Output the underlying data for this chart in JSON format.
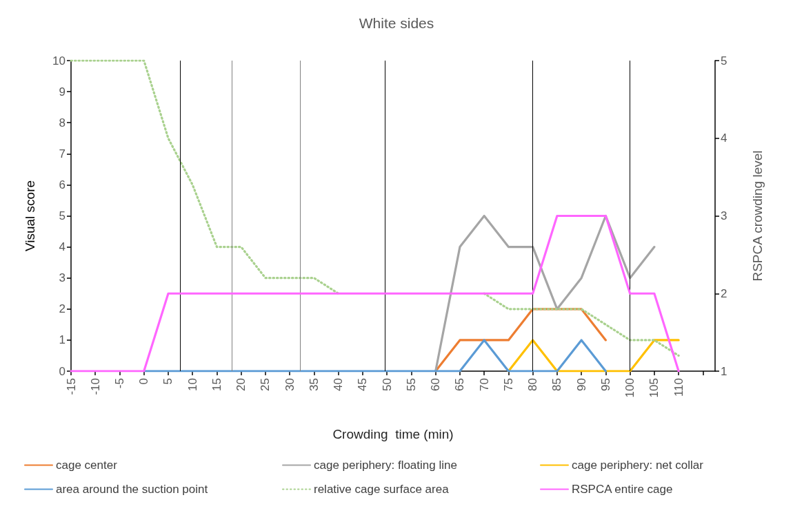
{
  "chart_data": {
    "type": "line",
    "title": "White sides",
    "xlabel": "Crowding  time (min)",
    "ylabel": "Visual score",
    "y2label": "RSPCA crowding level",
    "xlim": [
      -15,
      117.5
    ],
    "xticks": [
      -15,
      -10,
      -5,
      0,
      5,
      10,
      15,
      20,
      25,
      30,
      35,
      40,
      45,
      50,
      55,
      60,
      65,
      70,
      75,
      80,
      85,
      90,
      95,
      100,
      105,
      110,
      {
        "value": 115,
        "label": null
      }
    ],
    "ylim": [
      0,
      10
    ],
    "yticks": [
      0,
      1,
      2,
      3,
      4,
      5,
      6,
      7,
      8,
      9,
      10
    ],
    "y2lim": [
      1,
      5
    ],
    "y2ticks": [
      1,
      2,
      3,
      4,
      5
    ],
    "grid": false,
    "legend": "bottom",
    "marker": "none",
    "line_style": "solid",
    "ref_lines": [
      {
        "axis": "x",
        "value": 7.4,
        "color": "#000000"
      },
      {
        "axis": "x",
        "value": 18.1,
        "color": "#808080"
      },
      {
        "axis": "x",
        "value": 32.2,
        "color": "#808080"
      },
      {
        "axis": "x",
        "value": 49.6,
        "color": "#000000"
      },
      {
        "axis": "x",
        "value": 80,
        "color": "#000000"
      },
      {
        "axis": "x",
        "value": 100,
        "color": "#000000"
      }
    ],
    "series": [
      {
        "name": "cage center",
        "color": "#ed7d31",
        "x": [
          60,
          65,
          70,
          75,
          80,
          85,
          90,
          95
        ],
        "values": [
          0,
          1,
          1,
          1,
          2,
          2,
          2,
          1
        ]
      },
      {
        "name": "cage periphery: floating line",
        "color": "#a5a5a5",
        "x": [
          60,
          65,
          70,
          75,
          80,
          85,
          90,
          95,
          100,
          105
        ],
        "values": [
          0,
          4,
          5,
          4,
          4,
          2,
          3,
          5,
          3,
          4
        ]
      },
      {
        "name": "cage periphery: net collar",
        "color": "#ffc000",
        "x": [
          75,
          80,
          85,
          90,
          95,
          100,
          105,
          110
        ],
        "values": [
          0,
          1,
          0,
          0,
          0,
          0,
          1,
          1
        ]
      },
      {
        "name": "area around the suction point",
        "color": "#5b9bd5",
        "x": [
          0,
          5,
          10,
          15,
          20,
          25,
          30,
          35,
          40,
          45,
          50,
          55,
          60,
          65,
          70,
          75,
          80,
          85,
          90,
          95
        ],
        "values": [
          0,
          0,
          0,
          0,
          0,
          0,
          0,
          0,
          0,
          0,
          0,
          0,
          0,
          0,
          1,
          0,
          0,
          0,
          1,
          0
        ]
      },
      {
        "name": "relative cage surface area",
        "color": "#a9d18e",
        "line_style": "dotted",
        "x": [
          -15,
          -10,
          -5,
          0,
          5,
          10,
          15,
          20,
          25,
          30,
          35,
          40,
          45,
          50,
          55,
          60,
          65,
          70,
          75,
          80,
          85,
          90,
          95,
          100,
          105,
          110
        ],
        "values": [
          10,
          10,
          10,
          10,
          7.5,
          6,
          4,
          4,
          3,
          3,
          3,
          2.5,
          null,
          null,
          null,
          null,
          null,
          2.5,
          2,
          2,
          2,
          2,
          1.5,
          1,
          1,
          0.5
        ]
      },
      {
        "name": "RSPCA entire cage",
        "color": "#ff66ff",
        "axis": "y2",
        "x": [
          -15,
          -10,
          -5,
          0,
          5,
          10,
          15,
          20,
          25,
          30,
          35,
          40,
          45,
          50,
          55,
          60,
          65,
          70,
          75,
          80,
          85,
          90,
          95,
          100,
          105,
          110
        ],
        "values": [
          1,
          1,
          1,
          1,
          2,
          2,
          2,
          2,
          2,
          2,
          2,
          2,
          2,
          2,
          2,
          2,
          2,
          2,
          2,
          2,
          3,
          3,
          3,
          2,
          2,
          1
        ]
      }
    ]
  }
}
